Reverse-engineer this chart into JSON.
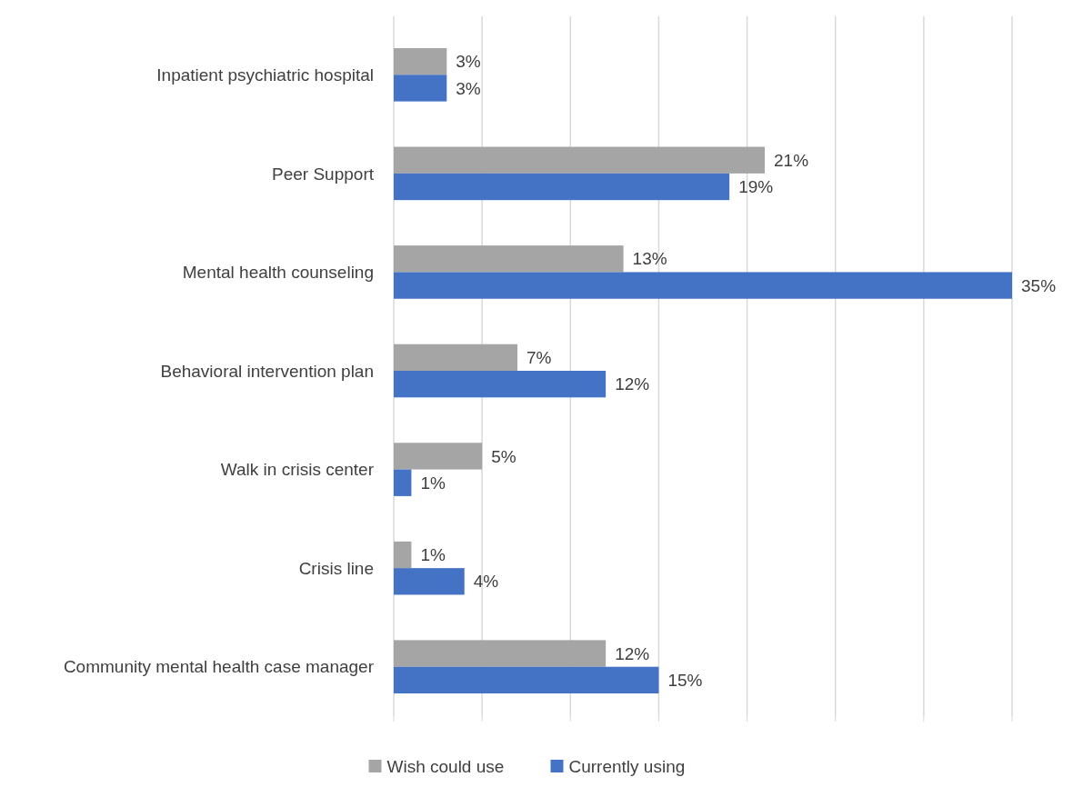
{
  "chart_data": {
    "type": "bar",
    "orientation": "horizontal",
    "categories": [
      "Inpatient psychiatric hospital",
      "Peer Support",
      "Mental health counseling",
      "Behavioral intervention plan",
      "Walk in crisis center",
      "Crisis line",
      "Community mental health case manager"
    ],
    "series": [
      {
        "name": "Wish could use",
        "color": "#a5a5a5",
        "values": [
          3,
          21,
          13,
          7,
          5,
          1,
          12
        ],
        "value_labels": [
          "3%",
          "21%",
          "13%",
          "7%",
          "5%",
          "1%",
          "12%"
        ]
      },
      {
        "name": "Currently using",
        "color": "#4472c4",
        "values": [
          3,
          19,
          35,
          12,
          1,
          4,
          15
        ],
        "value_labels": [
          "3%",
          "19%",
          "35%",
          "12%",
          "1%",
          "4%",
          "15%"
        ]
      }
    ],
    "tick_labels": "y",
    "grid": "x",
    "legend": "bottom"
  }
}
